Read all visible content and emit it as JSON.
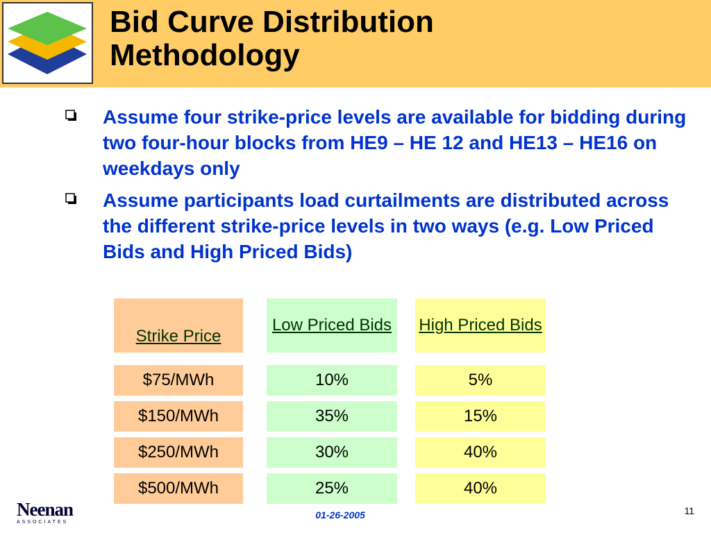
{
  "slide": {
    "title": "Bid Curve Distribution\nMethodology",
    "bullets": [
      "Assume four strike-price levels are available for bidding during two four-hour blocks from HE9 – HE 12 and HE13 – HE16 on weekdays only",
      "Assume participants load curtailments are distributed across the different strike-price levels in two ways (e.g. Low Priced Bids and High Priced Bids)"
    ],
    "bullet_icon": "hollow-square-bullet-icon",
    "logo_icon": "layered-diamonds-logo-icon"
  },
  "table": {
    "headers": [
      "Strike Price",
      "Low Priced Bids",
      "High Priced Bids"
    ],
    "rows": [
      [
        "$75/MWh",
        "10%",
        "5%"
      ],
      [
        "$150/MWh",
        "35%",
        "15%"
      ],
      [
        "$250/MWh",
        "30%",
        "40%"
      ],
      [
        "$500/MWh",
        "25%",
        "40%"
      ]
    ]
  },
  "footer": {
    "logo_name": "Neenan",
    "logo_sub": "ASSOCIATES",
    "date": "01-26-2005",
    "page_number": "11"
  },
  "colors": {
    "title_bar": "#FFCC66",
    "bullet_text": "#0033CC",
    "strike_cells": "#FFCC99",
    "low_cells": "#CCFFCC",
    "high_cells": "#FFFF99"
  }
}
